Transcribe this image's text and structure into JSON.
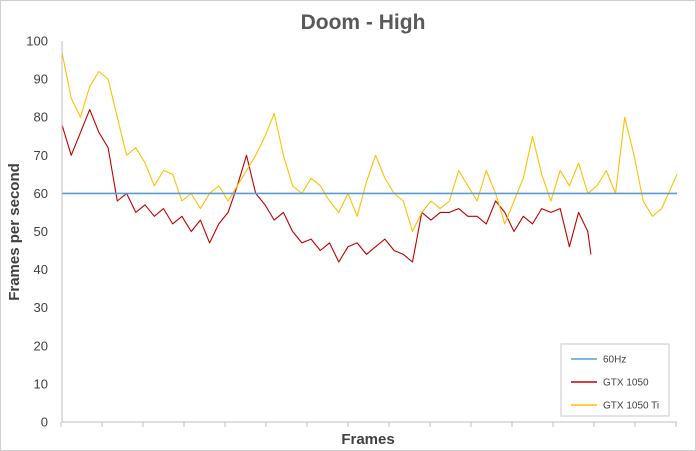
{
  "chart_data": {
    "type": "line",
    "title": "Doom - High",
    "xlabel": "Frames",
    "ylabel": "Frames per second",
    "ylim": [
      0,
      100
    ],
    "yticks": [
      0,
      10,
      20,
      30,
      40,
      50,
      60,
      70,
      80,
      90,
      100
    ],
    "x_tick_count": 15,
    "grid": false,
    "legend_position": "bottom-right",
    "series": [
      {
        "name": "60Hz",
        "color": "#5b9bd5",
        "x": [
          0,
          100
        ],
        "values": [
          60,
          60
        ]
      },
      {
        "name": "GTX 1050",
        "color": "#c00000",
        "x": [
          0,
          1.5,
          3,
          4.5,
          6,
          7.5,
          9,
          10.5,
          12,
          13.5,
          15,
          16.5,
          18,
          19.5,
          21,
          22.5,
          24,
          25.5,
          27,
          28.5,
          30,
          31.5,
          33,
          34.5,
          36,
          37.5,
          39,
          40.5,
          42,
          43.5,
          45,
          46.5,
          48,
          49.5,
          51,
          52.5,
          54,
          55.5,
          57,
          58.5,
          60,
          61.5,
          63,
          64.5,
          66,
          67.5,
          69,
          70.5,
          72,
          73.5,
          75,
          76.5,
          78,
          79.5,
          81,
          82.5,
          84,
          85.5,
          86
        ],
        "values": [
          78,
          70,
          76,
          82,
          76,
          72,
          58,
          60,
          55,
          57,
          54,
          56,
          52,
          54,
          50,
          53,
          47,
          52,
          55,
          62,
          70,
          60,
          57,
          53,
          55,
          50,
          47,
          48,
          45,
          47,
          42,
          46,
          47,
          44,
          46,
          48,
          45,
          44,
          42,
          55,
          53,
          55,
          55,
          56,
          54,
          54,
          52,
          58,
          55,
          50,
          54,
          52,
          56,
          55,
          56,
          46,
          55,
          50,
          44
        ]
      },
      {
        "name": "GTX 1050 Ti",
        "color": "#ffc000",
        "x": [
          0,
          1.5,
          3,
          4.5,
          6,
          7.5,
          9,
          10.5,
          12,
          13.5,
          15,
          16.5,
          18,
          19.5,
          21,
          22.5,
          24,
          25.5,
          27,
          28.5,
          30,
          31.5,
          33,
          34.5,
          36,
          37.5,
          39,
          40.5,
          42,
          43.5,
          45,
          46.5,
          48,
          49.5,
          51,
          52.5,
          54,
          55.5,
          57,
          58.5,
          60,
          61.5,
          63,
          64.5,
          66,
          67.5,
          69,
          70.5,
          72,
          73.5,
          75,
          76.5,
          78,
          79.5,
          81,
          82.5,
          84,
          85.5,
          87,
          88.5,
          90,
          91.5,
          93,
          94.5,
          96,
          97.5,
          100
        ],
        "values": [
          97,
          85,
          80,
          88,
          92,
          90,
          80,
          70,
          72,
          68,
          62,
          66,
          65,
          58,
          60,
          56,
          60,
          62,
          58,
          62,
          66,
          70,
          75,
          81,
          70,
          62,
          60,
          64,
          62,
          58,
          55,
          60,
          54,
          63,
          70,
          64,
          60,
          58,
          50,
          55,
          58,
          56,
          58,
          66,
          62,
          58,
          66,
          60,
          52,
          58,
          64,
          75,
          65,
          58,
          66,
          62,
          68,
          60,
          62,
          66,
          60,
          80,
          70,
          58,
          54,
          56,
          65
        ]
      }
    ]
  }
}
